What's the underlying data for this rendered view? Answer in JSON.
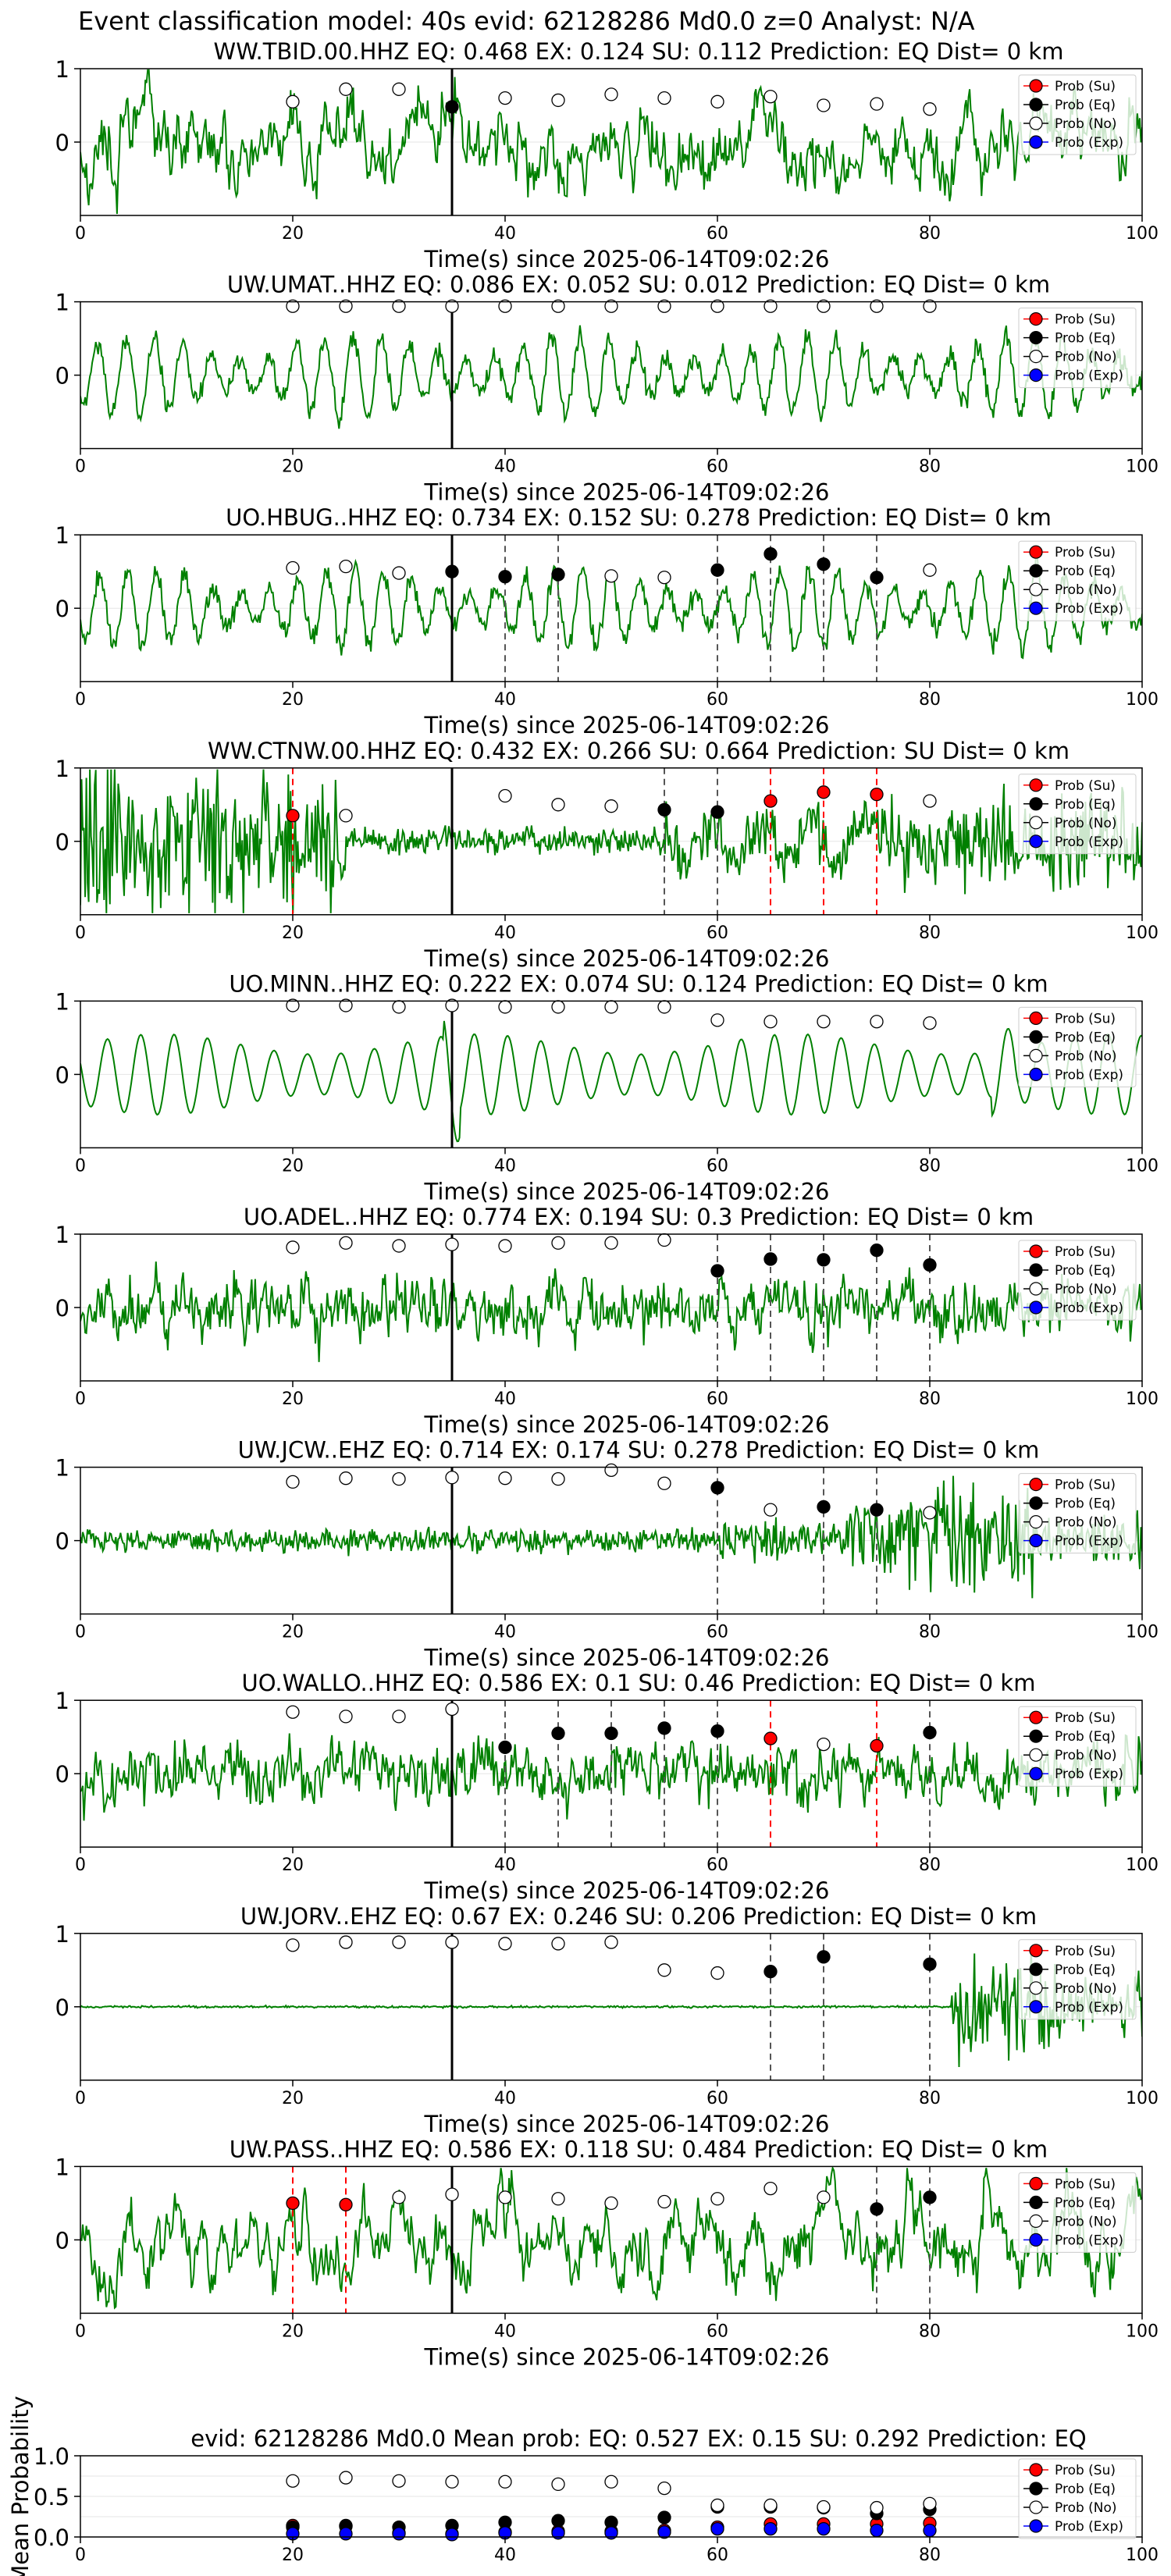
{
  "page": {
    "suptitle": "Event classification model: 40s evid: 62128286 Md0.0 z=0 Analyst: N/A"
  },
  "colors": {
    "trace": "#008000",
    "su": "#ff0000",
    "eq": "#000000",
    "no": "#ffffff",
    "exp": "#0000ff",
    "event_line": "#000000",
    "pick_eq_line": "#555555",
    "pick_su_line": "#ff0000"
  },
  "legend_labels": [
    "Prob (Su)",
    "Prob (Eq)",
    "Prob (No)",
    "Prob (Exp)"
  ],
  "xlabel": "Time(s) since 2025-06-14T09:02:26",
  "chart_data": [
    {
      "type": "scatter",
      "title": "WW.TBID.00.HHZ   EQ: 0.468  EX: 0.124  SU: 0.112   Prediction: EQ    Dist= 0 km",
      "station": "WW.TBID.00.HHZ",
      "xlim": [
        0,
        100
      ],
      "ylim": [
        -1,
        1
      ],
      "yticks": [
        0,
        1
      ],
      "xticks": [
        0,
        20,
        40,
        60,
        80,
        100
      ],
      "event_time": 35,
      "trace_style": "moderate",
      "markers": [
        {
          "x": 20,
          "y": 0.55,
          "cls": "no"
        },
        {
          "x": 25,
          "y": 0.72,
          "cls": "no"
        },
        {
          "x": 30,
          "y": 0.72,
          "cls": "no"
        },
        {
          "x": 35,
          "y": 0.48,
          "cls": "eq"
        },
        {
          "x": 40,
          "y": 0.6,
          "cls": "no"
        },
        {
          "x": 45,
          "y": 0.57,
          "cls": "no"
        },
        {
          "x": 50,
          "y": 0.65,
          "cls": "no"
        },
        {
          "x": 55,
          "y": 0.6,
          "cls": "no"
        },
        {
          "x": 60,
          "y": 0.55,
          "cls": "no"
        },
        {
          "x": 65,
          "y": 0.62,
          "cls": "no"
        },
        {
          "x": 70,
          "y": 0.5,
          "cls": "no"
        },
        {
          "x": 75,
          "y": 0.52,
          "cls": "no"
        },
        {
          "x": 80,
          "y": 0.45,
          "cls": "no"
        }
      ]
    },
    {
      "type": "scatter",
      "title": "UW.UMAT..HHZ   EQ: 0.086  EX: 0.052  SU: 0.012   Prediction: EQ    Dist= 0 km",
      "station": "UW.UMAT..HHZ",
      "xlim": [
        0,
        100
      ],
      "ylim": [
        -1,
        1
      ],
      "yticks": [
        0,
        1
      ],
      "xticks": [
        0,
        20,
        40,
        60,
        80,
        100
      ],
      "event_time": 35,
      "trace_style": "oscillation",
      "markers": [
        {
          "x": 20,
          "y": 0.94,
          "cls": "no"
        },
        {
          "x": 25,
          "y": 0.94,
          "cls": "no"
        },
        {
          "x": 30,
          "y": 0.94,
          "cls": "no"
        },
        {
          "x": 35,
          "y": 0.94,
          "cls": "no"
        },
        {
          "x": 40,
          "y": 0.94,
          "cls": "no"
        },
        {
          "x": 45,
          "y": 0.94,
          "cls": "no"
        },
        {
          "x": 50,
          "y": 0.94,
          "cls": "no"
        },
        {
          "x": 55,
          "y": 0.94,
          "cls": "no"
        },
        {
          "x": 60,
          "y": 0.94,
          "cls": "no"
        },
        {
          "x": 65,
          "y": 0.94,
          "cls": "no"
        },
        {
          "x": 70,
          "y": 0.94,
          "cls": "no"
        },
        {
          "x": 75,
          "y": 0.94,
          "cls": "no"
        },
        {
          "x": 80,
          "y": 0.94,
          "cls": "no"
        }
      ]
    },
    {
      "type": "scatter",
      "title": "UO.HBUG..HHZ   EQ: 0.734  EX: 0.152  SU: 0.278   Prediction: EQ    Dist= 0 km",
      "station": "UO.HBUG..HHZ",
      "xlim": [
        0,
        100
      ],
      "ylim": [
        -1,
        1
      ],
      "yticks": [
        0,
        1
      ],
      "xticks": [
        0,
        20,
        40,
        60,
        80,
        100
      ],
      "event_time": 35,
      "trace_style": "oscillation",
      "eq_picks": [
        40,
        45,
        60,
        65,
        70,
        75
      ],
      "su_picks": [],
      "markers": [
        {
          "x": 20,
          "y": 0.55,
          "cls": "no"
        },
        {
          "x": 25,
          "y": 0.57,
          "cls": "no"
        },
        {
          "x": 30,
          "y": 0.48,
          "cls": "no"
        },
        {
          "x": 35,
          "y": 0.5,
          "cls": "eq"
        },
        {
          "x": 40,
          "y": 0.43,
          "cls": "eq"
        },
        {
          "x": 45,
          "y": 0.46,
          "cls": "eq"
        },
        {
          "x": 50,
          "y": 0.44,
          "cls": "no"
        },
        {
          "x": 55,
          "y": 0.42,
          "cls": "no"
        },
        {
          "x": 60,
          "y": 0.52,
          "cls": "eq"
        },
        {
          "x": 65,
          "y": 0.74,
          "cls": "eq"
        },
        {
          "x": 70,
          "y": 0.6,
          "cls": "eq"
        },
        {
          "x": 75,
          "y": 0.42,
          "cls": "eq"
        },
        {
          "x": 80,
          "y": 0.52,
          "cls": "no"
        }
      ]
    },
    {
      "type": "scatter",
      "title": "WW.CTNW.00.HHZ   EQ: 0.432  EX: 0.266  SU: 0.664   Prediction: SU    Dist= 0 km",
      "station": "WW.CTNW.00.HHZ",
      "xlim": [
        0,
        100
      ],
      "ylim": [
        -1,
        1
      ],
      "yticks": [
        0,
        1
      ],
      "xticks": [
        0,
        20,
        40,
        60,
        80,
        100
      ],
      "event_time": 35,
      "trace_style": "burst-quiet-burst",
      "eq_picks": [
        55,
        60
      ],
      "su_picks": [
        20,
        65,
        70,
        75
      ],
      "markers": [
        {
          "x": 20,
          "y": 0.35,
          "cls": "su"
        },
        {
          "x": 25,
          "y": 0.35,
          "cls": "no"
        },
        {
          "x": 40,
          "y": 0.62,
          "cls": "no"
        },
        {
          "x": 45,
          "y": 0.5,
          "cls": "no"
        },
        {
          "x": 50,
          "y": 0.48,
          "cls": "no"
        },
        {
          "x": 55,
          "y": 0.43,
          "cls": "eq"
        },
        {
          "x": 60,
          "y": 0.4,
          "cls": "eq"
        },
        {
          "x": 65,
          "y": 0.55,
          "cls": "su"
        },
        {
          "x": 70,
          "y": 0.67,
          "cls": "su"
        },
        {
          "x": 75,
          "y": 0.64,
          "cls": "su"
        },
        {
          "x": 80,
          "y": 0.55,
          "cls": "no"
        }
      ]
    },
    {
      "type": "scatter",
      "title": "UO.MINN..HHZ   EQ: 0.222  EX: 0.074  SU: 0.124   Prediction: EQ    Dist= 0 km",
      "station": "UO.MINN..HHZ",
      "xlim": [
        0,
        100
      ],
      "ylim": [
        -1,
        1
      ],
      "yticks": [
        0,
        1
      ],
      "xticks": [
        0,
        20,
        40,
        60,
        80,
        100
      ],
      "event_time": 35,
      "trace_style": "smooth",
      "markers": [
        {
          "x": 20,
          "y": 0.94,
          "cls": "no"
        },
        {
          "x": 25,
          "y": 0.94,
          "cls": "no"
        },
        {
          "x": 30,
          "y": 0.92,
          "cls": "no"
        },
        {
          "x": 35,
          "y": 0.94,
          "cls": "no"
        },
        {
          "x": 40,
          "y": 0.92,
          "cls": "no"
        },
        {
          "x": 45,
          "y": 0.92,
          "cls": "no"
        },
        {
          "x": 50,
          "y": 0.92,
          "cls": "no"
        },
        {
          "x": 55,
          "y": 0.92,
          "cls": "no"
        },
        {
          "x": 60,
          "y": 0.74,
          "cls": "no"
        },
        {
          "x": 65,
          "y": 0.72,
          "cls": "no"
        },
        {
          "x": 70,
          "y": 0.72,
          "cls": "no"
        },
        {
          "x": 75,
          "y": 0.72,
          "cls": "no"
        },
        {
          "x": 80,
          "y": 0.7,
          "cls": "no"
        }
      ]
    },
    {
      "type": "scatter",
      "title": "UO.ADEL..HHZ   EQ: 0.774  EX: 0.194  SU: 0.3   Prediction: EQ    Dist= 0 km",
      "station": "UO.ADEL..HHZ",
      "xlim": [
        0,
        100
      ],
      "ylim": [
        -1,
        1
      ],
      "yticks": [
        0,
        1
      ],
      "xticks": [
        0,
        20,
        40,
        60,
        80,
        100
      ],
      "event_time": 35,
      "trace_style": "noisy",
      "eq_picks": [
        60,
        65,
        70,
        75,
        80
      ],
      "su_picks": [],
      "markers": [
        {
          "x": 20,
          "y": 0.82,
          "cls": "no"
        },
        {
          "x": 25,
          "y": 0.88,
          "cls": "no"
        },
        {
          "x": 30,
          "y": 0.84,
          "cls": "no"
        },
        {
          "x": 35,
          "y": 0.86,
          "cls": "no"
        },
        {
          "x": 40,
          "y": 0.84,
          "cls": "no"
        },
        {
          "x": 45,
          "y": 0.88,
          "cls": "no"
        },
        {
          "x": 50,
          "y": 0.88,
          "cls": "no"
        },
        {
          "x": 55,
          "y": 0.92,
          "cls": "no"
        },
        {
          "x": 60,
          "y": 0.5,
          "cls": "eq"
        },
        {
          "x": 65,
          "y": 0.66,
          "cls": "eq"
        },
        {
          "x": 70,
          "y": 0.65,
          "cls": "eq"
        },
        {
          "x": 75,
          "y": 0.78,
          "cls": "eq"
        },
        {
          "x": 80,
          "y": 0.58,
          "cls": "eq"
        }
      ]
    },
    {
      "type": "scatter",
      "title": "UW.JCW..EHZ   EQ: 0.714  EX: 0.174  SU: 0.278   Prediction: EQ    Dist= 0 km",
      "station": "UW.JCW..EHZ",
      "xlim": [
        0,
        100
      ],
      "ylim": [
        -1,
        1
      ],
      "yticks": [
        0,
        1
      ],
      "xticks": [
        0,
        20,
        40,
        60,
        80,
        100
      ],
      "event_time": 35,
      "trace_style": "quiet-then-event",
      "eq_picks": [
        60,
        70,
        75
      ],
      "su_picks": [],
      "markers": [
        {
          "x": 20,
          "y": 0.8,
          "cls": "no"
        },
        {
          "x": 25,
          "y": 0.85,
          "cls": "no"
        },
        {
          "x": 30,
          "y": 0.84,
          "cls": "no"
        },
        {
          "x": 35,
          "y": 0.86,
          "cls": "no"
        },
        {
          "x": 40,
          "y": 0.85,
          "cls": "no"
        },
        {
          "x": 45,
          "y": 0.84,
          "cls": "no"
        },
        {
          "x": 50,
          "y": 0.96,
          "cls": "no"
        },
        {
          "x": 55,
          "y": 0.78,
          "cls": "no"
        },
        {
          "x": 60,
          "y": 0.72,
          "cls": "eq"
        },
        {
          "x": 65,
          "y": 0.42,
          "cls": "no"
        },
        {
          "x": 70,
          "y": 0.46,
          "cls": "eq"
        },
        {
          "x": 75,
          "y": 0.42,
          "cls": "eq"
        },
        {
          "x": 80,
          "y": 0.38,
          "cls": "no"
        }
      ]
    },
    {
      "type": "scatter",
      "title": "UO.WALLO..HHZ   EQ: 0.586  EX: 0.1  SU: 0.46   Prediction: EQ    Dist= 0 km",
      "station": "UO.WALLO..HHZ",
      "xlim": [
        0,
        100
      ],
      "ylim": [
        -1,
        1
      ],
      "yticks": [
        0,
        1
      ],
      "xticks": [
        0,
        20,
        40,
        60,
        80,
        100
      ],
      "event_time": 35,
      "trace_style": "noisy",
      "eq_picks": [
        40,
        45,
        50,
        55,
        60,
        80
      ],
      "su_picks": [
        65,
        75
      ],
      "markers": [
        {
          "x": 20,
          "y": 0.84,
          "cls": "no"
        },
        {
          "x": 25,
          "y": 0.78,
          "cls": "no"
        },
        {
          "x": 30,
          "y": 0.78,
          "cls": "no"
        },
        {
          "x": 35,
          "y": 0.88,
          "cls": "no"
        },
        {
          "x": 40,
          "y": 0.36,
          "cls": "eq"
        },
        {
          "x": 45,
          "y": 0.55,
          "cls": "eq"
        },
        {
          "x": 50,
          "y": 0.55,
          "cls": "eq"
        },
        {
          "x": 55,
          "y": 0.62,
          "cls": "eq"
        },
        {
          "x": 60,
          "y": 0.58,
          "cls": "eq"
        },
        {
          "x": 65,
          "y": 0.48,
          "cls": "su"
        },
        {
          "x": 70,
          "y": 0.4,
          "cls": "no"
        },
        {
          "x": 75,
          "y": 0.38,
          "cls": "su"
        },
        {
          "x": 80,
          "y": 0.56,
          "cls": "eq"
        }
      ]
    },
    {
      "type": "scatter",
      "title": "UW.JORV..EHZ   EQ: 0.67  EX: 0.246  SU: 0.206   Prediction: EQ    Dist= 0 km",
      "station": "UW.JORV..EHZ",
      "xlim": [
        0,
        100
      ],
      "ylim": [
        -1,
        1
      ],
      "yticks": [
        0,
        1
      ],
      "xticks": [
        0,
        20,
        40,
        60,
        80,
        100
      ],
      "event_time": 35,
      "trace_style": "flat-then-event",
      "eq_picks": [
        65,
        70,
        80
      ],
      "su_picks": [],
      "markers": [
        {
          "x": 20,
          "y": 0.84,
          "cls": "no"
        },
        {
          "x": 25,
          "y": 0.88,
          "cls": "no"
        },
        {
          "x": 30,
          "y": 0.88,
          "cls": "no"
        },
        {
          "x": 35,
          "y": 0.88,
          "cls": "no"
        },
        {
          "x": 40,
          "y": 0.86,
          "cls": "no"
        },
        {
          "x": 45,
          "y": 0.86,
          "cls": "no"
        },
        {
          "x": 50,
          "y": 0.88,
          "cls": "no"
        },
        {
          "x": 55,
          "y": 0.5,
          "cls": "no"
        },
        {
          "x": 60,
          "y": 0.46,
          "cls": "no"
        },
        {
          "x": 65,
          "y": 0.48,
          "cls": "eq"
        },
        {
          "x": 70,
          "y": 0.68,
          "cls": "eq"
        },
        {
          "x": 80,
          "y": 0.58,
          "cls": "eq"
        }
      ]
    },
    {
      "type": "scatter",
      "title": "UW.PASS..HHZ   EQ: 0.586  EX: 0.118  SU: 0.484   Prediction: EQ    Dist= 0 km",
      "station": "UW.PASS..HHZ",
      "xlim": [
        0,
        100
      ],
      "ylim": [
        -1,
        1
      ],
      "yticks": [
        0,
        1
      ],
      "xticks": [
        0,
        20,
        40,
        60,
        80,
        100
      ],
      "event_time": 35,
      "trace_style": "moderate",
      "eq_picks": [
        75,
        80
      ],
      "su_picks": [
        20,
        25
      ],
      "markers": [
        {
          "x": 20,
          "y": 0.5,
          "cls": "su"
        },
        {
          "x": 25,
          "y": 0.48,
          "cls": "su"
        },
        {
          "x": 30,
          "y": 0.58,
          "cls": "no"
        },
        {
          "x": 35,
          "y": 0.62,
          "cls": "no"
        },
        {
          "x": 40,
          "y": 0.58,
          "cls": "no"
        },
        {
          "x": 45,
          "y": 0.56,
          "cls": "no"
        },
        {
          "x": 50,
          "y": 0.5,
          "cls": "no"
        },
        {
          "x": 55,
          "y": 0.52,
          "cls": "no"
        },
        {
          "x": 60,
          "y": 0.56,
          "cls": "no"
        },
        {
          "x": 65,
          "y": 0.7,
          "cls": "no"
        },
        {
          "x": 70,
          "y": 0.58,
          "cls": "no"
        },
        {
          "x": 75,
          "y": 0.42,
          "cls": "eq"
        },
        {
          "x": 80,
          "y": 0.58,
          "cls": "eq"
        }
      ]
    },
    {
      "type": "scatter",
      "title": "evid: 62128286  Md0.0   Mean prob:   EQ: 0.527  EX: 0.15  SU: 0.292   Prediction: EQ",
      "ylabel": "Mean Probability",
      "xlim": [
        0,
        100
      ],
      "ylim": [
        0,
        1
      ],
      "yticks": [
        0.0,
        0.5,
        1.0
      ],
      "ytick_labels": [
        "0.0",
        "0.5",
        "1.0"
      ],
      "xticks": [
        0,
        20,
        40,
        60,
        80,
        100
      ],
      "x": [
        20,
        25,
        30,
        35,
        40,
        45,
        50,
        55,
        60,
        65,
        70,
        75,
        80
      ],
      "series": [
        {
          "name": "Prob (Su)",
          "cls": "su",
          "values": [
            0.14,
            0.14,
            0.05,
            0.04,
            0.06,
            0.07,
            0.07,
            0.08,
            0.12,
            0.16,
            0.16,
            0.16,
            0.17
          ]
        },
        {
          "name": "Prob (Eq)",
          "cls": "eq",
          "values": [
            0.12,
            0.13,
            0.12,
            0.14,
            0.18,
            0.2,
            0.18,
            0.24,
            0.37,
            0.37,
            0.36,
            0.29,
            0.34
          ]
        },
        {
          "name": "Prob (No)",
          "cls": "no",
          "values": [
            0.69,
            0.73,
            0.69,
            0.68,
            0.68,
            0.65,
            0.68,
            0.6,
            0.39,
            0.39,
            0.37,
            0.36,
            0.41
          ]
        },
        {
          "name": "Prob (Exp)",
          "cls": "exp",
          "values": [
            0.04,
            0.04,
            0.04,
            0.03,
            0.05,
            0.05,
            0.05,
            0.06,
            0.1,
            0.1,
            0.1,
            0.08,
            0.08
          ]
        }
      ]
    }
  ]
}
